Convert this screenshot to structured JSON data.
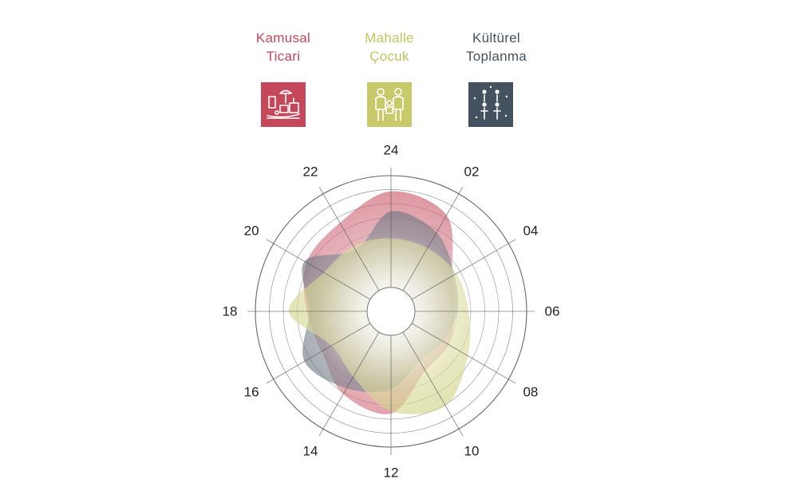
{
  "legend": [
    {
      "line1": "Kamusal",
      "line2": "Ticari",
      "color": "#c4475a",
      "icon": "market-stall-icon"
    },
    {
      "line1": "Mahalle",
      "line2": "Çocuk",
      "color": "#c7c96a",
      "icon": "parent-child-icon"
    },
    {
      "line1": "Kültürel",
      "line2": "Toplanma",
      "color": "#44525f",
      "icon": "gathering-people-icon"
    }
  ],
  "chart_data": {
    "type": "radar",
    "title": "",
    "axis_labels": [
      "24",
      "02",
      "04",
      "06",
      "08",
      "10",
      "12",
      "14",
      "16",
      "18",
      "20",
      "22"
    ],
    "r_range": [
      0,
      10
    ],
    "rings": 8,
    "grid": true,
    "series": [
      {
        "name": "Kamusal Ticari",
        "color": "#c4475a",
        "values": [
          8.6,
          7.8,
          4.2,
          3.6,
          3.8,
          4.0,
          7.0,
          6.4,
          5.0,
          5.4,
          6.6,
          7.0
        ]
      },
      {
        "name": "Kültürel Toplanma",
        "color": "#44525f",
        "values": [
          6.8,
          6.0,
          4.4,
          3.8,
          3.2,
          3.0,
          4.8,
          5.8,
          6.8,
          5.2,
          6.8,
          4.2
        ]
      },
      {
        "name": "Mahalle Çocuk",
        "color": "#c7c96a",
        "values": [
          4.4,
          4.4,
          4.6,
          4.8,
          5.8,
          7.6,
          6.8,
          4.6,
          4.0,
          7.0,
          4.8,
          4.6
        ]
      }
    ]
  }
}
